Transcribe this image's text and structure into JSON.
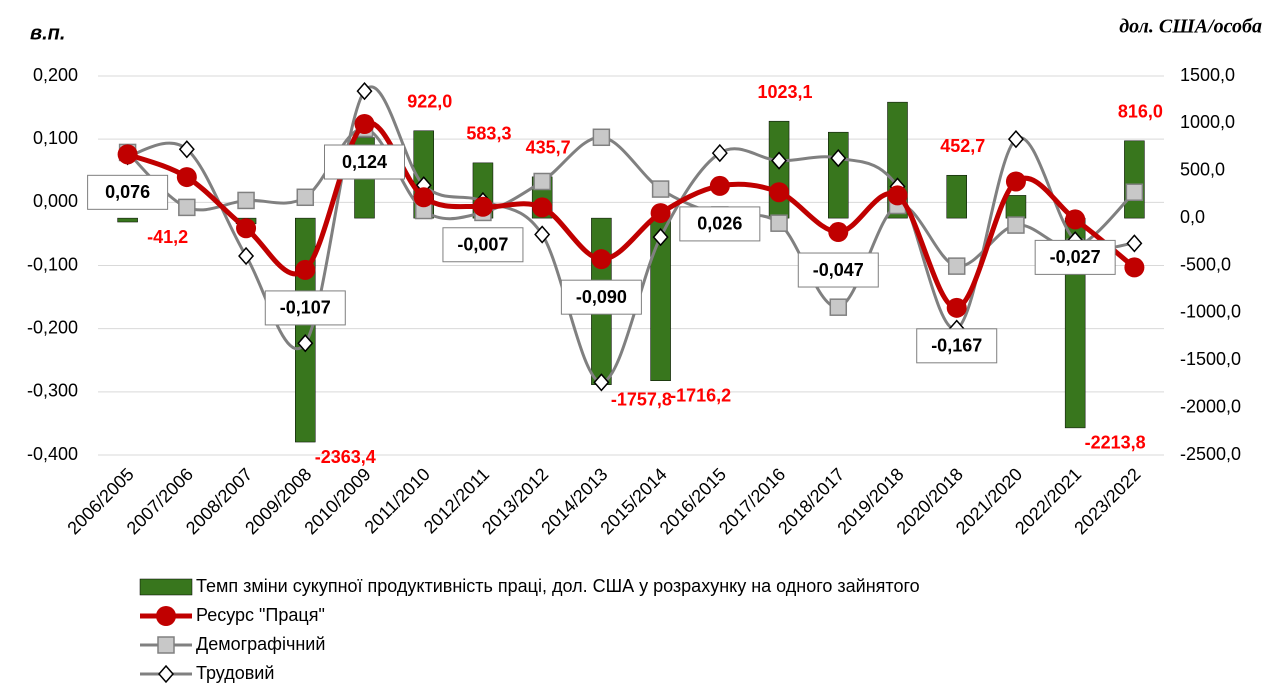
{
  "chart_data": {
    "type": "bar-line",
    "y_label": "в.п.",
    "y2_label": "дол. США/особа",
    "categories": [
      "2006/2005",
      "2007/2006",
      "2008/2007",
      "2009/2008",
      "2010/2009",
      "2011/2010",
      "2012/2011",
      "2013/2012",
      "2014/2013",
      "2015/2014",
      "2016/2015",
      "2017/2016",
      "2018/2017",
      "2019/2018",
      "2020/2018",
      "2021/2020",
      "2022/2021",
      "2023/2022"
    ],
    "ylim": [
      -0.4,
      0.2
    ],
    "yticks": [
      {
        "value": -0.4,
        "label": "-0,400"
      },
      {
        "value": -0.3,
        "label": "-0,300"
      },
      {
        "value": -0.2,
        "label": "-0,200"
      },
      {
        "value": -0.1,
        "label": "-0,100"
      },
      {
        "value": 0,
        "label": "0,000"
      },
      {
        "value": 0.1,
        "label": "0,100"
      },
      {
        "value": 0.2,
        "label": "0,200"
      }
    ],
    "y2lim": [
      -2500,
      1500
    ],
    "y2ticks": [
      {
        "value": -2500,
        "label": "-2500,0"
      },
      {
        "value": -2000,
        "label": "-2000,0"
      },
      {
        "value": -1500,
        "label": "-1500,0"
      },
      {
        "value": -1000,
        "label": "-1000,0"
      },
      {
        "value": -500,
        "label": "-500,0"
      },
      {
        "value": 0,
        "label": "0,0"
      },
      {
        "value": 500,
        "label": "500,0"
      },
      {
        "value": 1000,
        "label": "1000,0"
      },
      {
        "value": 1500,
        "label": "1500,0"
      }
    ],
    "grid": true,
    "series": [
      {
        "name": "Темп зміни сукупної продуктивність праці, дол. США у розрахунку на одного зайнятого",
        "type": "bar",
        "axis": "y2",
        "color": "#38761d",
        "values": [
          -41.2,
          0,
          -60,
          -2363.4,
          850,
          922.0,
          583.3,
          435.7,
          -1757.8,
          -1716.2,
          0,
          1023.1,
          907,
          1224,
          452.7,
          240,
          -2213.8,
          816.0
        ],
        "value_labels": [
          "-41,2",
          null,
          null,
          "-2363,4",
          null,
          "922,0",
          "583,3",
          "435,7",
          "-1757,8",
          "-1716,2",
          null,
          "1023,1",
          null,
          null,
          "452,7",
          null,
          "-2213,8",
          "816,0"
        ]
      },
      {
        "name": "Ресурс \"Праця\"",
        "type": "line",
        "marker": "circle",
        "color": "#c00000",
        "values": [
          0.076,
          0.04,
          -0.041,
          -0.107,
          0.124,
          0.008,
          -0.007,
          -0.008,
          -0.09,
          -0.017,
          0.026,
          0.016,
          -0.047,
          0.011,
          -0.167,
          0.033,
          -0.027,
          -0.103
        ],
        "value_labels": [
          "0,076",
          null,
          null,
          "-0,107",
          "0,124",
          null,
          "-0,007",
          null,
          "-0,090",
          null,
          "0,026",
          null,
          "-0,047",
          null,
          "-0,167",
          null,
          "-0,027",
          null
        ]
      },
      {
        "name": "Демографічний",
        "type": "line",
        "marker": "square",
        "color": "#808080",
        "values": [
          0.079,
          -0.008,
          0.003,
          0.008,
          0.117,
          -0.013,
          -0.016,
          0.033,
          0.103,
          0.021,
          -0.02,
          -0.033,
          -0.166,
          -0.005,
          -0.101,
          -0.036,
          -0.071,
          0.016
        ]
      },
      {
        "name": "Трудовий",
        "type": "line",
        "marker": "diamond",
        "color": "#808080",
        "values": [
          0.073,
          0.084,
          -0.085,
          -0.223,
          0.176,
          0.027,
          0.002,
          -0.051,
          -0.285,
          -0.055,
          0.078,
          0.066,
          0.07,
          0.025,
          -0.2,
          0.1,
          -0.06,
          -0.065
        ]
      }
    ]
  }
}
